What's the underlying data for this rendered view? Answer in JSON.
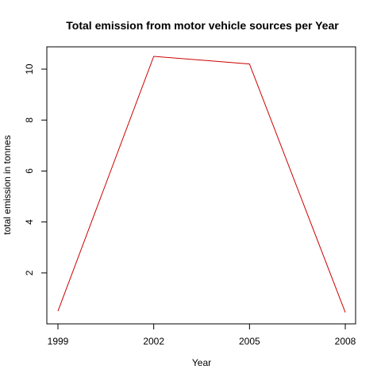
{
  "chart_data": {
    "type": "line",
    "title": "Total emission from motor vehicle sources per Year",
    "xlabel": "Year",
    "ylabel": "total emission in tonnes",
    "x": [
      1999,
      2002,
      2005,
      2008
    ],
    "xlim": [
      1999,
      2008
    ],
    "ylim": [
      0.5,
      10.5
    ],
    "xticks": [
      1999,
      2002,
      2005,
      2008
    ],
    "yticks": [
      2,
      4,
      6,
      8,
      10
    ],
    "series": [
      {
        "values": [
          0.5,
          10.5,
          10.2,
          0.45
        ],
        "color": "#cc0000"
      }
    ],
    "grid": false,
    "legend": "none"
  }
}
